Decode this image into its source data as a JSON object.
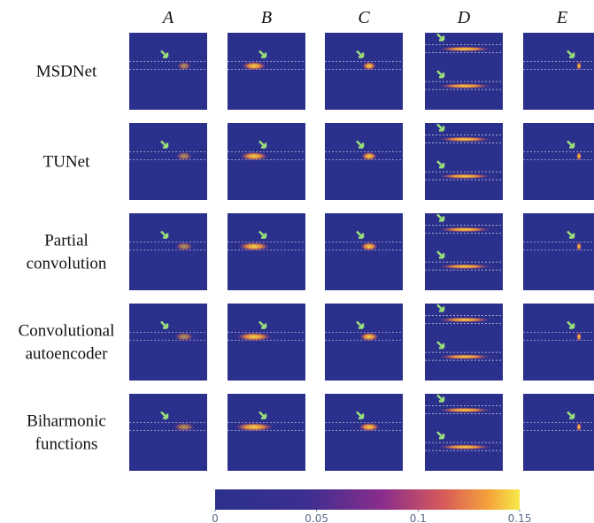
{
  "columns": [
    "A",
    "B",
    "C",
    "D",
    "E"
  ],
  "rows": [
    [
      "MSDNet"
    ],
    [
      "TUNet"
    ],
    [
      "Partial",
      "convolution"
    ],
    [
      "Convolutional",
      "autoencoder"
    ],
    [
      "Biharmonic",
      "functions"
    ]
  ],
  "colorbar": {
    "lim": [
      0,
      0.15
    ],
    "ticks": [
      0,
      0.05,
      0.1,
      0.15
    ]
  }
}
